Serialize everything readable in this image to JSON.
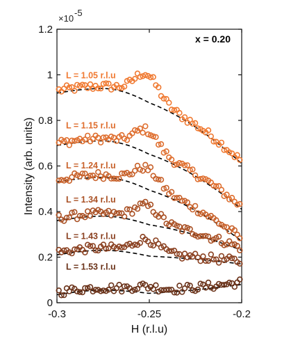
{
  "chart_data": {
    "type": "scatter",
    "xlabel": "H (r.l.u)",
    "ylabel": "Intensity (arb. units)",
    "xlim": [
      -0.3,
      -0.2
    ],
    "ylim": [
      0,
      1.2
    ],
    "xticks": [
      "-0.3",
      "-0.25",
      "-0.2"
    ],
    "yticks": [
      "0",
      "0.2",
      "0.4",
      "0.6",
      "0.8",
      "1",
      "1.2"
    ],
    "y_scale_multiplier": "×10",
    "y_scale_exponent": "-5",
    "annotation": "x = 0.20",
    "grid": false,
    "series": [
      {
        "name": "L = 1.05 r.l.u",
        "color": "#f07a32",
        "baseline_left": 0.93,
        "peak_height": 0.11,
        "end_value": 0.62,
        "label_y": 0.985
      },
      {
        "name": "L = 1.15 r.l.u",
        "color": "#df6e2e",
        "baseline_left": 0.7,
        "peak_height": 0.09,
        "end_value": 0.42,
        "label_y": 0.765
      },
      {
        "name": "L = 1.24 r.l.u",
        "color": "#c8612a",
        "baseline_left": 0.54,
        "peak_height": 0.08,
        "end_value": 0.28,
        "label_y": 0.59
      },
      {
        "name": "L = 1.34 r.l.u",
        "color": "#a95024",
        "baseline_left": 0.37,
        "peak_height": 0.07,
        "end_value": 0.24,
        "label_y": 0.44
      },
      {
        "name": "L = 1.43 r.l.u",
        "color": "#8a4020",
        "baseline_left": 0.22,
        "peak_height": 0.06,
        "end_value": 0.18,
        "label_y": 0.28
      },
      {
        "name": "L = 1.53 r.l.u",
        "color": "#6a3219",
        "baseline_left": 0.045,
        "peak_height": 0.02,
        "end_value": 0.09,
        "label_y": 0.145
      }
    ]
  }
}
